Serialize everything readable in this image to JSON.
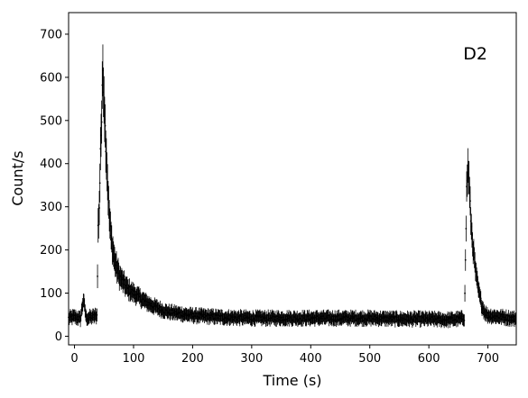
{
  "chart_data": {
    "type": "scatter",
    "title": "",
    "xlabel": "Time (s)",
    "ylabel": "Count/s",
    "annotation": "D2",
    "annotation_position": "top-right",
    "xlim": [
      -10,
      748
    ],
    "ylim": [
      -20,
      750
    ],
    "xticks": [
      0,
      100,
      200,
      300,
      400,
      500,
      600,
      700
    ],
    "yticks": [
      0,
      100,
      200,
      300,
      400,
      500,
      600,
      700
    ],
    "grid": false,
    "legend": "none",
    "color": "#000000",
    "series": [
      {
        "x": [
          -10,
          0,
          10,
          15,
          20,
          30,
          38,
          40,
          42,
          44,
          46,
          48,
          50,
          52,
          54,
          56,
          58,
          60,
          62,
          65,
          68,
          72,
          76,
          80,
          90,
          100,
          110,
          120,
          130,
          140,
          150,
          160,
          180,
          200,
          225,
          250,
          300,
          350,
          400,
          450,
          500,
          550,
          600,
          630,
          650,
          660,
          662,
          664,
          666,
          668,
          670,
          672,
          674,
          676,
          680,
          685,
          690,
          695,
          700,
          720,
          748
        ],
        "y": [
          42,
          45,
          40,
          85,
          42,
          45,
          48,
          250,
          290,
          440,
          500,
          620,
          560,
          480,
          420,
          360,
          300,
          260,
          230,
          200,
          175,
          155,
          140,
          130,
          110,
          100,
          90,
          80,
          72,
          66,
          60,
          56,
          52,
          48,
          46,
          44,
          42,
          42,
          42,
          42,
          42,
          40,
          40,
          38,
          40,
          42,
          170,
          340,
          390,
          360,
          300,
          250,
          220,
          190,
          140,
          100,
          70,
          55,
          48,
          45,
          40
        ],
        "yerr": [
          14,
          14,
          14,
          16,
          14,
          14,
          15,
          40,
          40,
          50,
          50,
          60,
          55,
          50,
          48,
          42,
          38,
          35,
          32,
          30,
          28,
          26,
          24,
          22,
          20,
          18,
          17,
          16,
          15,
          15,
          14,
          14,
          14,
          14,
          14,
          14,
          14,
          14,
          14,
          14,
          14,
          14,
          14,
          14,
          14,
          14,
          25,
          35,
          40,
          38,
          34,
          30,
          28,
          25,
          22,
          18,
          16,
          15,
          14,
          14,
          14
        ]
      }
    ]
  }
}
